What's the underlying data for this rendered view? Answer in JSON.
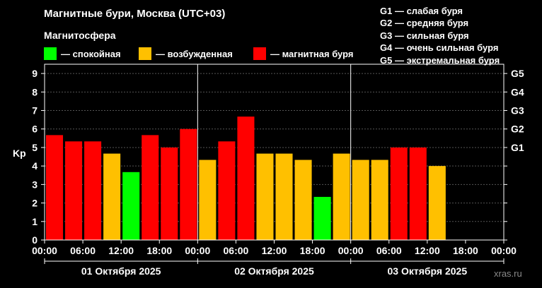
{
  "header": {
    "title": "Магнитные бури, Москва (UTC+03)",
    "section": "Магнитосфера"
  },
  "legend": [
    {
      "label": "— спокойная",
      "color": "#00ff00"
    },
    {
      "label": "— возбужденная",
      "color": "#ffc000"
    },
    {
      "label": "— магнитная буря",
      "color": "#ff0000"
    }
  ],
  "storm_levels": [
    "G1 — слабая буря",
    "G2 — средняя буря",
    "G3 — сильная буря",
    "G4 — очень сильная буря",
    "G5 — экстремальная буря"
  ],
  "watermark": "xras.ru",
  "chart_data": {
    "type": "bar",
    "ylabel": "Kp",
    "ylim": [
      0,
      9.5
    ],
    "y_ticks": [
      "0",
      "1",
      "2",
      "3",
      "4",
      "5",
      "6",
      "7",
      "8",
      "9"
    ],
    "right_ticks": [
      {
        "label": "G1",
        "value": 5
      },
      {
        "label": "G2",
        "value": 6
      },
      {
        "label": "G3",
        "value": 7
      },
      {
        "label": "G4",
        "value": 8
      },
      {
        "label": "G5",
        "value": 9
      }
    ],
    "x_tick_labels": [
      "00:00",
      "06:00",
      "12:00",
      "18:00",
      "00:00",
      "06:00",
      "12:00",
      "18:00",
      "00:00",
      "06:00",
      "12:00",
      "18:00",
      "00:00"
    ],
    "days": [
      "01 Октября 2025",
      "02 Октября 2025",
      "03 Октября 2025"
    ],
    "grid": "horizontal dashed at integer Kp",
    "bars": [
      {
        "value": 5.67,
        "level": "storm"
      },
      {
        "value": 5.33,
        "level": "storm"
      },
      {
        "value": 5.33,
        "level": "storm"
      },
      {
        "value": 4.67,
        "level": "active"
      },
      {
        "value": 3.67,
        "level": "quiet"
      },
      {
        "value": 5.67,
        "level": "storm"
      },
      {
        "value": 5.0,
        "level": "storm"
      },
      {
        "value": 6.0,
        "level": "storm"
      },
      {
        "value": 4.33,
        "level": "active"
      },
      {
        "value": 5.33,
        "level": "storm"
      },
      {
        "value": 6.67,
        "level": "storm"
      },
      {
        "value": 4.67,
        "level": "active"
      },
      {
        "value": 4.67,
        "level": "active"
      },
      {
        "value": 4.33,
        "level": "active"
      },
      {
        "value": 2.33,
        "level": "quiet"
      },
      {
        "value": 4.67,
        "level": "active"
      },
      {
        "value": 4.33,
        "level": "active"
      },
      {
        "value": 4.33,
        "level": "active"
      },
      {
        "value": 5.0,
        "level": "storm"
      },
      {
        "value": 5.0,
        "level": "storm"
      },
      {
        "value": 4.0,
        "level": "active"
      }
    ],
    "colors": {
      "quiet": "#00ff00",
      "active": "#ffc000",
      "storm": "#ff0000"
    }
  }
}
